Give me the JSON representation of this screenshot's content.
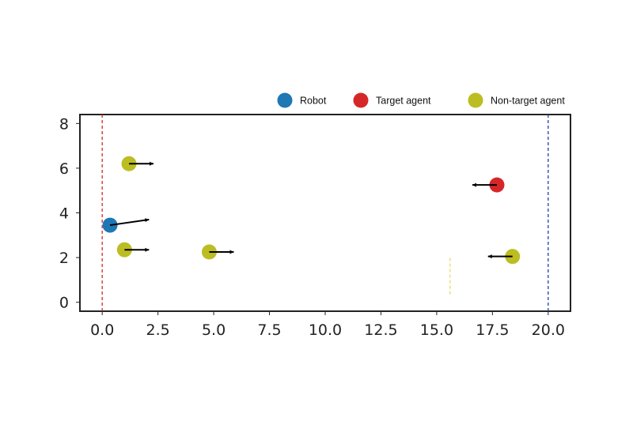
{
  "chart_data": {
    "type": "scatter",
    "xlim": [
      -1,
      21
    ],
    "ylim": [
      -0.4,
      8.4
    ],
    "x_ticks": [
      0,
      2.5,
      5,
      7.5,
      10,
      12.5,
      15,
      17.5,
      20
    ],
    "x_tick_labels": [
      "0.0",
      "2.5",
      "5.0",
      "7.5",
      "10.0",
      "12.5",
      "15.0",
      "17.5",
      "20.0"
    ],
    "y_ticks": [
      0,
      2,
      4,
      6,
      8
    ],
    "y_tick_labels": [
      "0",
      "2",
      "4",
      "6",
      "8"
    ],
    "grid": false,
    "legend_position": "top",
    "legend": [
      {
        "label": "Robot",
        "color": "#1f77b4"
      },
      {
        "label": "Target agent",
        "color": "#d62728"
      },
      {
        "label": "Non-target agent",
        "color": "#bcbd22"
      }
    ],
    "agents": [
      {
        "role": "robot",
        "color": "#1f77b4",
        "x": 0.35,
        "y": 3.45,
        "vx": 1.75,
        "vy": 0.25
      },
      {
        "role": "target",
        "color": "#d62728",
        "x": 17.7,
        "y": 5.25,
        "vx": -1.1,
        "vy": 0
      },
      {
        "role": "non-target",
        "color": "#bcbd22",
        "x": 1.2,
        "y": 6.2,
        "vx": 1.1,
        "vy": 0
      },
      {
        "role": "non-target",
        "color": "#bcbd22",
        "x": 1.0,
        "y": 2.35,
        "vx": 1.1,
        "vy": 0
      },
      {
        "role": "non-target",
        "color": "#bcbd22",
        "x": 4.8,
        "y": 2.25,
        "vx": 1.1,
        "vy": 0
      },
      {
        "role": "non-target",
        "color": "#bcbd22",
        "x": 18.4,
        "y": 2.05,
        "vx": -1.1,
        "vy": 0
      }
    ],
    "reference_lines": [
      {
        "x": 0,
        "color": "#d62728",
        "style": "dashed"
      },
      {
        "x": 20,
        "color": "#1f3fa8",
        "style": "dashed"
      },
      {
        "x": 15.6,
        "color": "#e8d86a",
        "style": "dashed",
        "y_range": [
          0,
          2.05
        ]
      }
    ]
  }
}
